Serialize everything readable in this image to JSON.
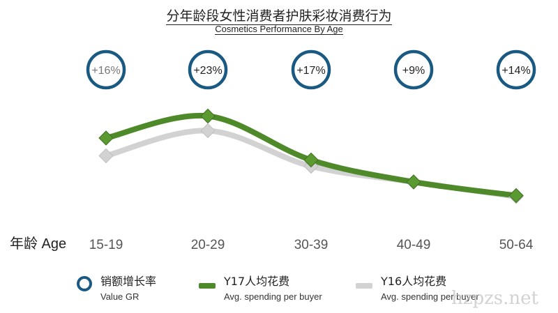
{
  "title_cn": "分年龄段女性消费者护肤彩妆消费行为",
  "title_en": "Cosmetics Performance By Age",
  "axis_label": "年龄 Age",
  "legend": {
    "growth": {
      "cn": "销额增长率",
      "en": "Value GR"
    },
    "y17": {
      "cn": "Y17人均花费",
      "en": "Avg. spending per buyer"
    },
    "y16": {
      "cn": "Y16人均花费",
      "en": "Avg. spending per buyer"
    }
  },
  "watermark": "hzpzs.net",
  "colors": {
    "y17": "#4e8a2a",
    "y17_marker": "#5a9a31",
    "y16": "#d2d2d2",
    "ring": "#1a5a82"
  },
  "chart_data": {
    "type": "line",
    "categories": [
      "15-19",
      "20-29",
      "30-39",
      "40-49",
      "50-64"
    ],
    "series": [
      {
        "name": "Y17人均花费",
        "values": [
          0.68,
          0.89,
          0.47,
          0.26,
          0.13
        ]
      },
      {
        "name": "Y16人均花费",
        "values": [
          0.51,
          0.75,
          0.41,
          0.26,
          0.12
        ]
      }
    ],
    "growth_rates": [
      "+16%",
      "+23%",
      "+17%",
      "+9%",
      "+14%"
    ],
    "ylim": [
      0,
      1
    ],
    "y_axis_shown": false,
    "grid": false
  }
}
